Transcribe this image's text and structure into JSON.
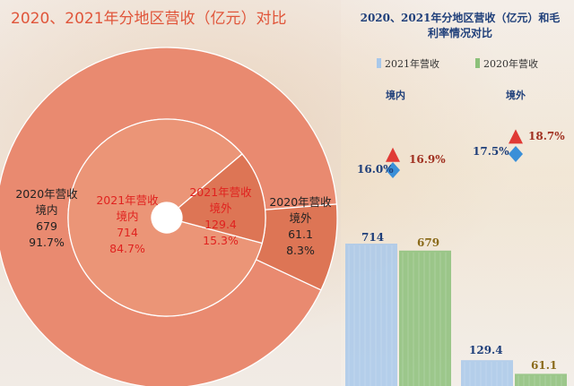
{
  "left_chart": {
    "title": "2020、2021年分地区营收（亿元）对比"
  },
  "right_chart": {
    "title_line1": "2020、2021年分地区营收（亿元）和毛",
    "title_line2": "利率情况对比",
    "legend": [
      {
        "label": "2021年营收",
        "color": "#a8c8ea"
      },
      {
        "label": "2020年营收",
        "color": "#8cc07a"
      }
    ],
    "categories": [
      "境内",
      "境外"
    ],
    "margin_2020": [
      "16.0%",
      "17.5%"
    ],
    "margin_2021": [
      "16.9%",
      "18.7%"
    ]
  },
  "colors": {
    "title_left": "#e0553a",
    "title_right": "#1f3f7a",
    "ring_outer": "#e98a70",
    "ring_inner": "#eb9577",
    "highlight_slice": "#dd7555",
    "red_text": "#e0221f",
    "bar_2021": "#a8c8ea",
    "bar_2020": "#8cc07a",
    "label_2021": "#1f3f7a",
    "label_2020": "#8a6a1a",
    "margin_2020_color": "#1f3f7a",
    "margin_2021_color": "#a03020"
  },
  "chart_data": [
    {
      "type": "pie",
      "title": "2020、2021年分地区营收（亿元）对比",
      "rings": [
        {
          "name": "2021年营收",
          "slices": [
            {
              "label_line1": "2021年营收",
              "label_line2": "境内",
              "value": 714,
              "value_text": "714",
              "percent": 84.7,
              "percent_text": "84.7%"
            },
            {
              "label_line1": "2021年营收",
              "label_line2": "境外",
              "value": 129.4,
              "value_text": "129.4",
              "percent": 15.3,
              "percent_text": "15.3%"
            }
          ]
        },
        {
          "name": "2020年营收",
          "slices": [
            {
              "label_line1": "2020年营收",
              "label_line2": "境内",
              "value": 679,
              "value_text": "679",
              "percent": 91.7,
              "percent_text": "91.7%"
            },
            {
              "label_line1": "2020年营收",
              "label_line2": "境外",
              "value": 61.1,
              "value_text": "61.1",
              "percent": 8.3,
              "percent_text": "8.3%"
            }
          ]
        }
      ]
    },
    {
      "type": "bar",
      "title": "2020、2021年分地区营收（亿元）和毛利率情况对比",
      "categories": [
        "境内",
        "境外"
      ],
      "series": [
        {
          "name": "2021年营收",
          "values": [
            714,
            129.4
          ],
          "labels": [
            "714",
            "129.4"
          ]
        },
        {
          "name": "2020年营收",
          "values": [
            679,
            61.1
          ],
          "labels": [
            "679",
            "61.1"
          ]
        }
      ],
      "margins": {
        "2020": [
          16.0,
          17.5
        ],
        "2021": [
          16.9,
          18.7
        ]
      }
    }
  ]
}
